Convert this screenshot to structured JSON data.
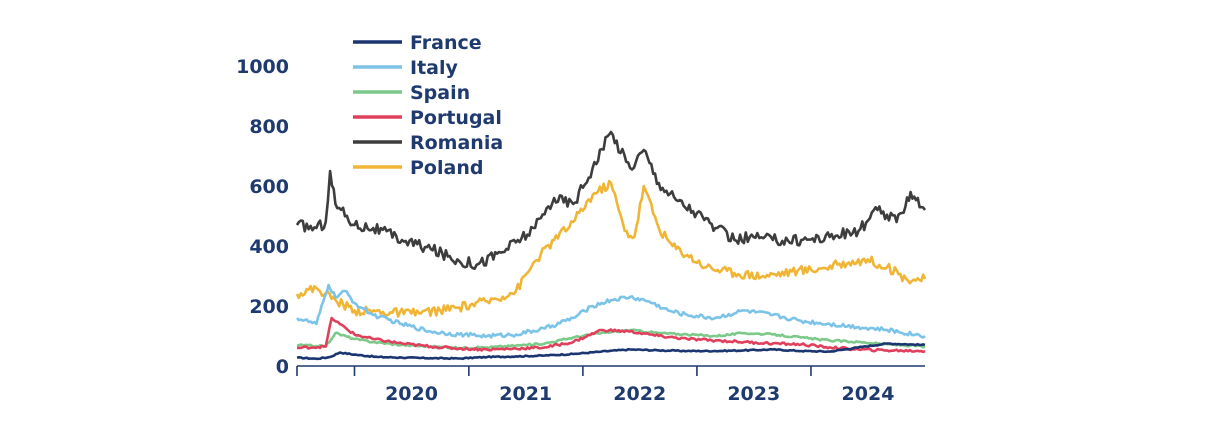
{
  "chart_data": {
    "type": "line",
    "title": "",
    "xlabel": "",
    "ylabel": "",
    "ylim": [
      0,
      1000
    ],
    "yticks": [
      "0",
      "200",
      "400",
      "600",
      "800",
      "1000"
    ],
    "xticks": [
      "2020",
      "2021",
      "2022",
      "2023",
      "2024"
    ],
    "x_range": [
      "2019-07-01",
      "2024-12-31"
    ],
    "legend_position": "top-left",
    "series": [
      {
        "name": "France",
        "color": "#1a3570",
        "points": [
          [
            "2019-07-01",
            28
          ],
          [
            "2019-09-01",
            24
          ],
          [
            "2019-10-15",
            30
          ],
          [
            "2019-11-15",
            45
          ],
          [
            "2020-01-01",
            38
          ],
          [
            "2020-03-15",
            30
          ],
          [
            "2020-06-01",
            28
          ],
          [
            "2020-09-01",
            26
          ],
          [
            "2020-12-01",
            25
          ],
          [
            "2021-03-01",
            30
          ],
          [
            "2021-06-01",
            32
          ],
          [
            "2021-09-01",
            35
          ],
          [
            "2021-12-01",
            40
          ],
          [
            "2022-03-01",
            48
          ],
          [
            "2022-06-01",
            55
          ],
          [
            "2022-09-01",
            52
          ],
          [
            "2022-12-01",
            50
          ],
          [
            "2023-03-01",
            50
          ],
          [
            "2023-06-01",
            52
          ],
          [
            "2023-09-01",
            55
          ],
          [
            "2023-12-01",
            50
          ],
          [
            "2024-03-01",
            48
          ],
          [
            "2024-06-01",
            62
          ],
          [
            "2024-09-01",
            75
          ],
          [
            "2024-12-31",
            70
          ]
        ]
      },
      {
        "name": "Italy",
        "color": "#7cc3e8",
        "points": [
          [
            "2019-07-01",
            160
          ],
          [
            "2019-09-01",
            140
          ],
          [
            "2019-10-10",
            270
          ],
          [
            "2019-11-01",
            230
          ],
          [
            "2019-12-01",
            250
          ],
          [
            "2020-01-01",
            210
          ],
          [
            "2020-03-01",
            170
          ],
          [
            "2020-06-01",
            140
          ],
          [
            "2020-09-01",
            115
          ],
          [
            "2020-12-01",
            105
          ],
          [
            "2021-03-01",
            100
          ],
          [
            "2021-06-01",
            105
          ],
          [
            "2021-09-01",
            125
          ],
          [
            "2021-12-01",
            160
          ],
          [
            "2022-02-01",
            200
          ],
          [
            "2022-04-01",
            220
          ],
          [
            "2022-06-01",
            230
          ],
          [
            "2022-08-01",
            215
          ],
          [
            "2022-10-01",
            185
          ],
          [
            "2022-12-01",
            170
          ],
          [
            "2023-03-01",
            160
          ],
          [
            "2023-06-01",
            185
          ],
          [
            "2023-09-01",
            170
          ],
          [
            "2023-12-01",
            150
          ],
          [
            "2024-03-01",
            140
          ],
          [
            "2024-06-01",
            130
          ],
          [
            "2024-09-01",
            120
          ],
          [
            "2024-12-31",
            100
          ]
        ]
      },
      {
        "name": "Spain",
        "color": "#7cc98a",
        "points": [
          [
            "2019-07-01",
            70
          ],
          [
            "2019-10-01",
            65
          ],
          [
            "2019-11-01",
            110
          ],
          [
            "2020-01-01",
            90
          ],
          [
            "2020-03-01",
            80
          ],
          [
            "2020-06-01",
            70
          ],
          [
            "2020-09-01",
            65
          ],
          [
            "2020-12-01",
            60
          ],
          [
            "2021-03-01",
            62
          ],
          [
            "2021-06-01",
            68
          ],
          [
            "2021-09-01",
            75
          ],
          [
            "2021-12-01",
            95
          ],
          [
            "2022-03-01",
            110
          ],
          [
            "2022-06-01",
            120
          ],
          [
            "2022-09-01",
            110
          ],
          [
            "2022-12-01",
            105
          ],
          [
            "2023-03-01",
            100
          ],
          [
            "2023-06-01",
            110
          ],
          [
            "2023-09-01",
            105
          ],
          [
            "2023-12-01",
            95
          ],
          [
            "2024-03-01",
            85
          ],
          [
            "2024-06-01",
            80
          ],
          [
            "2024-09-01",
            72
          ],
          [
            "2024-12-31",
            65
          ]
        ]
      },
      {
        "name": "Portugal",
        "color": "#e0405c",
        "points": [
          [
            "2019-07-01",
            60
          ],
          [
            "2019-10-01",
            65
          ],
          [
            "2019-10-20",
            160
          ],
          [
            "2019-11-15",
            140
          ],
          [
            "2020-01-01",
            105
          ],
          [
            "2020-03-01",
            90
          ],
          [
            "2020-06-01",
            75
          ],
          [
            "2020-09-01",
            65
          ],
          [
            "2020-12-01",
            58
          ],
          [
            "2021-03-01",
            55
          ],
          [
            "2021-06-01",
            58
          ],
          [
            "2021-09-01",
            62
          ],
          [
            "2021-12-01",
            80
          ],
          [
            "2022-03-01",
            120
          ],
          [
            "2022-06-01",
            115
          ],
          [
            "2022-09-01",
            100
          ],
          [
            "2022-12-01",
            90
          ],
          [
            "2023-03-01",
            85
          ],
          [
            "2023-06-01",
            80
          ],
          [
            "2023-09-01",
            75
          ],
          [
            "2023-12-01",
            72
          ],
          [
            "2024-03-01",
            62
          ],
          [
            "2024-06-01",
            55
          ],
          [
            "2024-09-01",
            52
          ],
          [
            "2024-12-31",
            50
          ]
        ]
      },
      {
        "name": "Romania",
        "color": "#3d3d3d",
        "points": [
          [
            "2019-07-01",
            470
          ],
          [
            "2019-09-01",
            460
          ],
          [
            "2019-10-01",
            480
          ],
          [
            "2019-10-15",
            650
          ],
          [
            "2019-11-01",
            540
          ],
          [
            "2020-01-01",
            470
          ],
          [
            "2020-03-01",
            460
          ],
          [
            "2020-06-01",
            420
          ],
          [
            "2020-09-01",
            390
          ],
          [
            "2020-12-01",
            350
          ],
          [
            "2021-02-01",
            340
          ],
          [
            "2021-05-01",
            390
          ],
          [
            "2021-08-01",
            460
          ],
          [
            "2021-10-01",
            560
          ],
          [
            "2021-12-01",
            540
          ],
          [
            "2022-02-01",
            660
          ],
          [
            "2022-04-01",
            780
          ],
          [
            "2022-06-01",
            660
          ],
          [
            "2022-07-15",
            720
          ],
          [
            "2022-09-01",
            610
          ],
          [
            "2022-11-01",
            550
          ],
          [
            "2023-01-01",
            510
          ],
          [
            "2023-03-01",
            460
          ],
          [
            "2023-05-01",
            420
          ],
          [
            "2023-07-01",
            430
          ],
          [
            "2023-09-01",
            420
          ],
          [
            "2023-12-01",
            420
          ],
          [
            "2024-03-01",
            430
          ],
          [
            "2024-06-01",
            450
          ],
          [
            "2024-08-01",
            520
          ],
          [
            "2024-10-01",
            480
          ],
          [
            "2024-11-15",
            580
          ],
          [
            "2024-12-31",
            520
          ]
        ]
      },
      {
        "name": "Poland",
        "color": "#f0b534",
        "points": [
          [
            "2019-07-01",
            240
          ],
          [
            "2019-09-01",
            260
          ],
          [
            "2019-11-01",
            220
          ],
          [
            "2020-01-01",
            185
          ],
          [
            "2020-04-01",
            180
          ],
          [
            "2020-07-01",
            175
          ],
          [
            "2020-10-01",
            185
          ],
          [
            "2020-12-01",
            195
          ],
          [
            "2021-03-01",
            215
          ],
          [
            "2021-06-01",
            250
          ],
          [
            "2021-08-01",
            350
          ],
          [
            "2021-10-01",
            420
          ],
          [
            "2021-12-01",
            480
          ],
          [
            "2022-02-01",
            570
          ],
          [
            "2022-04-01",
            610
          ],
          [
            "2022-05-15",
            450
          ],
          [
            "2022-06-15",
            430
          ],
          [
            "2022-07-15",
            600
          ],
          [
            "2022-09-01",
            460
          ],
          [
            "2022-10-15",
            400
          ],
          [
            "2022-12-01",
            370
          ],
          [
            "2023-02-01",
            330
          ],
          [
            "2023-05-01",
            310
          ],
          [
            "2023-08-01",
            300
          ],
          [
            "2023-11-01",
            315
          ],
          [
            "2024-02-01",
            325
          ],
          [
            "2024-05-01",
            345
          ],
          [
            "2024-07-01",
            355
          ],
          [
            "2024-09-01",
            330
          ],
          [
            "2024-11-01",
            290
          ],
          [
            "2024-12-31",
            290
          ]
        ]
      }
    ]
  }
}
